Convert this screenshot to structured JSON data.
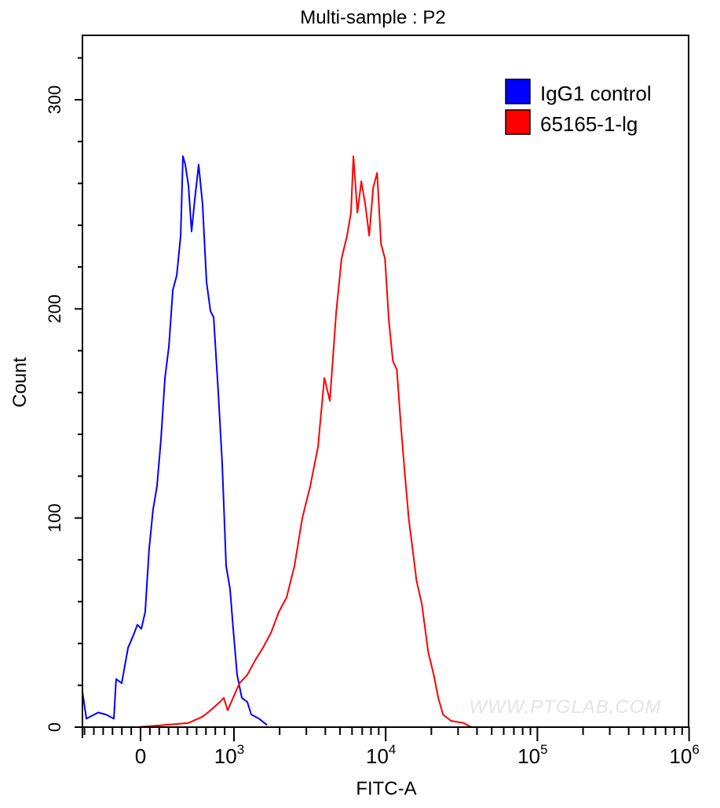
{
  "chart_data": {
    "type": "line",
    "title": "Multi-sample : P2",
    "xlabel": "FITC-A",
    "ylabel": "Count",
    "x_scale": "biexponential",
    "xlim": [
      -622,
      1000000
    ],
    "ylim": [
      0,
      330
    ],
    "x_ticks": [
      {
        "value": 0,
        "label": "0",
        "exp": ""
      },
      {
        "value": 1000,
        "label": "10",
        "exp": "3"
      },
      {
        "value": 10000,
        "label": "10",
        "exp": "4"
      },
      {
        "value": 100000,
        "label": "10",
        "exp": "5"
      },
      {
        "value": 1000000,
        "label": "10",
        "exp": "6"
      }
    ],
    "y_ticks": [
      {
        "value": 0,
        "label": "0"
      },
      {
        "value": 100,
        "label": "100"
      },
      {
        "value": 200,
        "label": "200"
      },
      {
        "value": 300,
        "label": "300"
      }
    ],
    "grid": false,
    "legend_position": "top-right",
    "series": [
      {
        "name": "IgG1 control",
        "color": "#0000ff",
        "x": [
          -622,
          -580,
          -454,
          -370,
          -286,
          -261,
          -202,
          -134,
          -76,
          -34,
          8,
          50,
          92,
          134,
          176,
          218,
          261,
          303,
          345,
          387,
          429,
          454,
          479,
          513,
          546,
          580,
          622,
          664,
          706,
          748,
          782,
          832,
          874,
          916,
          958,
          992,
          1049,
          1127,
          1225,
          1300,
          1464,
          1650
        ],
        "y": [
          17,
          4,
          7,
          6,
          4,
          23,
          21,
          38,
          44,
          49,
          47,
          55,
          85,
          104,
          115,
          137,
          167,
          182,
          209,
          216,
          235,
          273,
          269,
          259,
          237,
          252,
          269,
          250,
          213,
          199,
          196,
          160,
          126,
          77,
          66,
          47,
          25,
          14,
          12,
          6,
          4,
          1
        ]
      },
      {
        "name": "65165-1-lg",
        "color": "#ff0000",
        "x": [
          -34,
          261,
          513,
          664,
          748,
          849,
          891,
          933,
          1000,
          1087,
          1225,
          1380,
          1555,
          1751,
          1973,
          2222,
          2504,
          2820,
          3177,
          3578,
          3944,
          4285,
          4714,
          5121,
          5566,
          5908,
          6130,
          6508,
          6910,
          7336,
          7789,
          8270,
          8780,
          9320,
          9895,
          10506,
          11154,
          11842,
          12572,
          13348,
          14171,
          15045,
          15972,
          17302,
          19051,
          20737,
          22218,
          23882,
          26951,
          32565,
          36755
        ],
        "y": [
          0,
          1,
          2,
          5,
          8,
          12,
          14,
          8,
          15,
          21,
          25,
          32,
          38,
          45,
          55,
          62,
          77,
          100,
          115,
          134,
          167,
          156,
          198,
          224,
          235,
          246,
          273,
          246,
          261,
          250,
          235,
          258,
          265,
          231,
          224,
          194,
          175,
          171,
          145,
          122,
          100,
          85,
          70,
          59,
          36,
          25,
          14,
          6,
          3,
          2,
          0
        ]
      }
    ]
  },
  "legend": [
    "IgG1 control",
    "65165-1-lg"
  ],
  "watermark": "WWW.PTGLAB.COM"
}
